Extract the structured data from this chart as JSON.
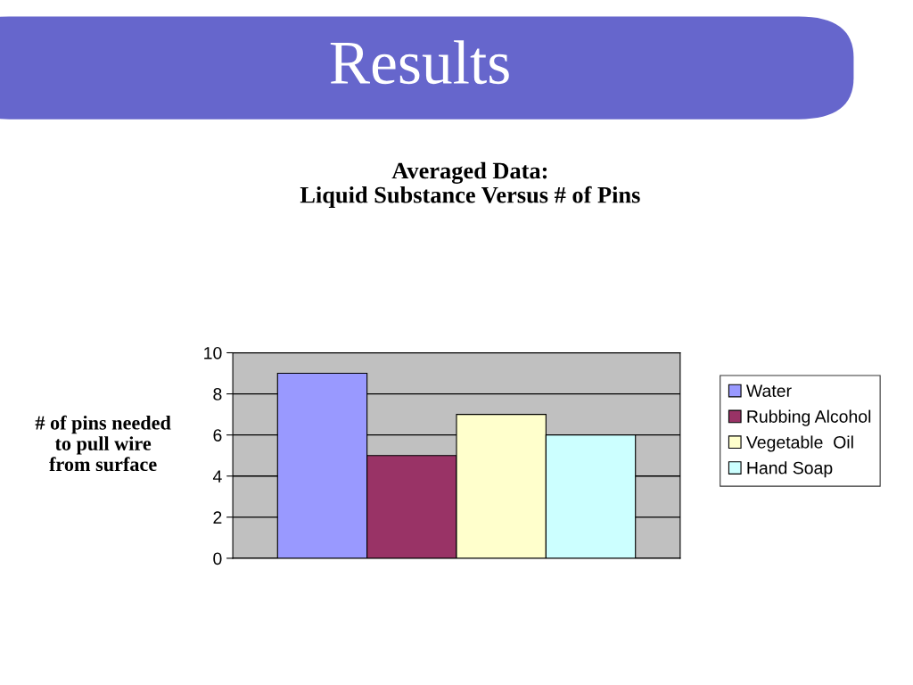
{
  "chart_data": {
    "type": "bar",
    "title": "Results",
    "subtitle": "Averaged Data:\nLiquid Substance Versus # of Pins",
    "ylabel": "# of pins needed\nto pull wire\nfrom surface",
    "categories": [
      null
    ],
    "series": [
      {
        "name": "Water",
        "color": "#9999ff",
        "values": [
          9
        ]
      },
      {
        "name": "Rubbing Alcohol",
        "color": "#993366",
        "values": [
          5
        ]
      },
      {
        "name": "Vegetable  Oil",
        "color": "#ffffcc",
        "values": [
          7
        ]
      },
      {
        "name": "Hand Soap",
        "color": "#ccffff",
        "values": [
          6
        ]
      }
    ],
    "ylim": [
      0,
      10
    ],
    "yticks": [
      0,
      2,
      4,
      6,
      8,
      10
    ],
    "grid": "y",
    "legend": "right"
  }
}
